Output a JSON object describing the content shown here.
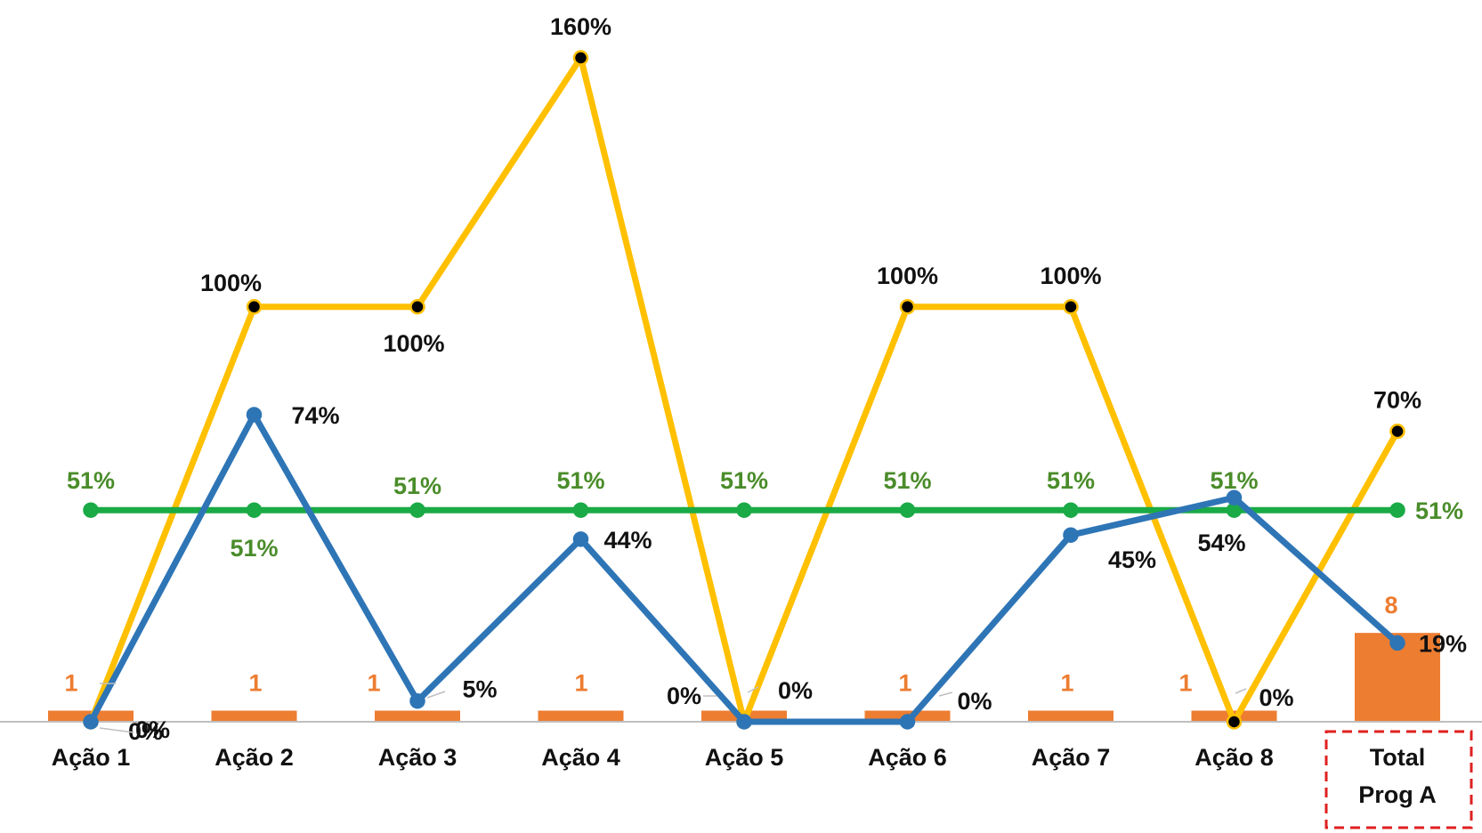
{
  "chart_data": {
    "type": "line",
    "categories": [
      "Ação 1",
      "Ação 2",
      "Ação 3",
      "Ação 4",
      "Ação 5",
      "Ação 6",
      "Ação 7",
      "Ação 8",
      "Total Prog A"
    ],
    "category_lines": [
      [
        "Ação 1"
      ],
      [
        "Ação 2"
      ],
      [
        "Ação 3"
      ],
      [
        "Ação 4"
      ],
      [
        "Ação 5"
      ],
      [
        "Ação 6"
      ],
      [
        "Ação 7"
      ],
      [
        "Ação 8"
      ],
      [
        "Total",
        "Prog A"
      ]
    ],
    "highlighted_category": "Total Prog A",
    "bars": {
      "color": "#ed7d31",
      "values": [
        1,
        1,
        1,
        1,
        1,
        1,
        1,
        1,
        8
      ],
      "labels": [
        "1",
        "1",
        "1",
        "1",
        "",
        "1",
        "1",
        "1",
        "8"
      ],
      "axis_max": 65
    },
    "series": [
      {
        "key": "yellow",
        "color": "#ffc000",
        "marker_fill": "#000000",
        "values": [
          0,
          100,
          100,
          160,
          0,
          100,
          100,
          0,
          70
        ],
        "labels": [
          "0%",
          "100%",
          "100%",
          "160%",
          "0%",
          "100%",
          "100%",
          "0%",
          "70%"
        ]
      },
      {
        "key": "green",
        "color": "#1aaa46",
        "marker_fill": "#1aaa46",
        "values": [
          51,
          51,
          51,
          51,
          51,
          51,
          51,
          51,
          51
        ],
        "labels": [
          "51%",
          "51%",
          "51%",
          "51%",
          "51%",
          "51%",
          "51%",
          "51%",
          "51%"
        ]
      },
      {
        "key": "blue",
        "color": "#2e75b6",
        "marker_fill": "#2e75b6",
        "values": [
          0,
          74,
          5,
          44,
          0,
          0,
          45,
          54,
          19
        ],
        "labels": [
          "0%",
          "74%",
          "5%",
          "44%",
          "0%",
          "0%",
          "45%",
          "54%",
          "19%"
        ]
      }
    ],
    "ylim": [
      0,
      170
    ],
    "grid": false,
    "legend": "none"
  }
}
